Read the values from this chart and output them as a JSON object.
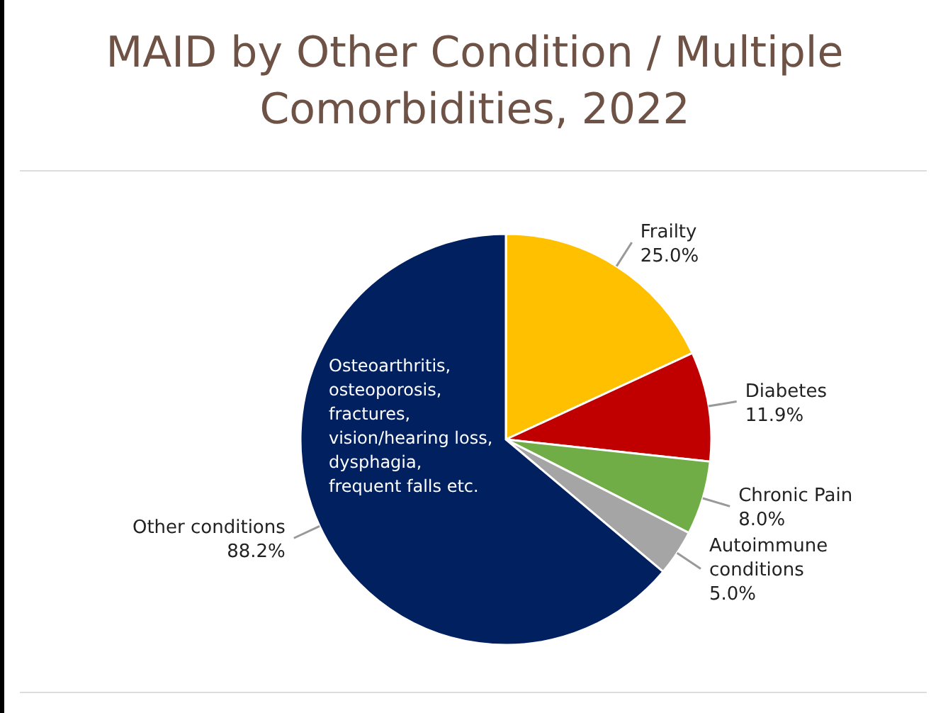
{
  "chart_data": {
    "type": "pie",
    "title": "MAID by Other Condition / Multiple Comorbidities, 2022",
    "categories": [
      "Frailty",
      "Diabetes",
      "Chronic Pain",
      "Autoimmune conditions",
      "Other conditions"
    ],
    "values": [
      25.0,
      11.9,
      8.0,
      5.0,
      88.2
    ],
    "value_labels": [
      "25.0%",
      "11.9%",
      "8.0%",
      "5.0%",
      "88.2%"
    ],
    "colors": [
      "#ffc000",
      "#c00000",
      "#70ad47",
      "#a5a5a5",
      "#002060"
    ],
    "annotations": [
      "Osteoarthritis, osteoporosis, fractures, vision/hearing loss, dysphagia, frequent falls etc."
    ],
    "legend": false
  }
}
